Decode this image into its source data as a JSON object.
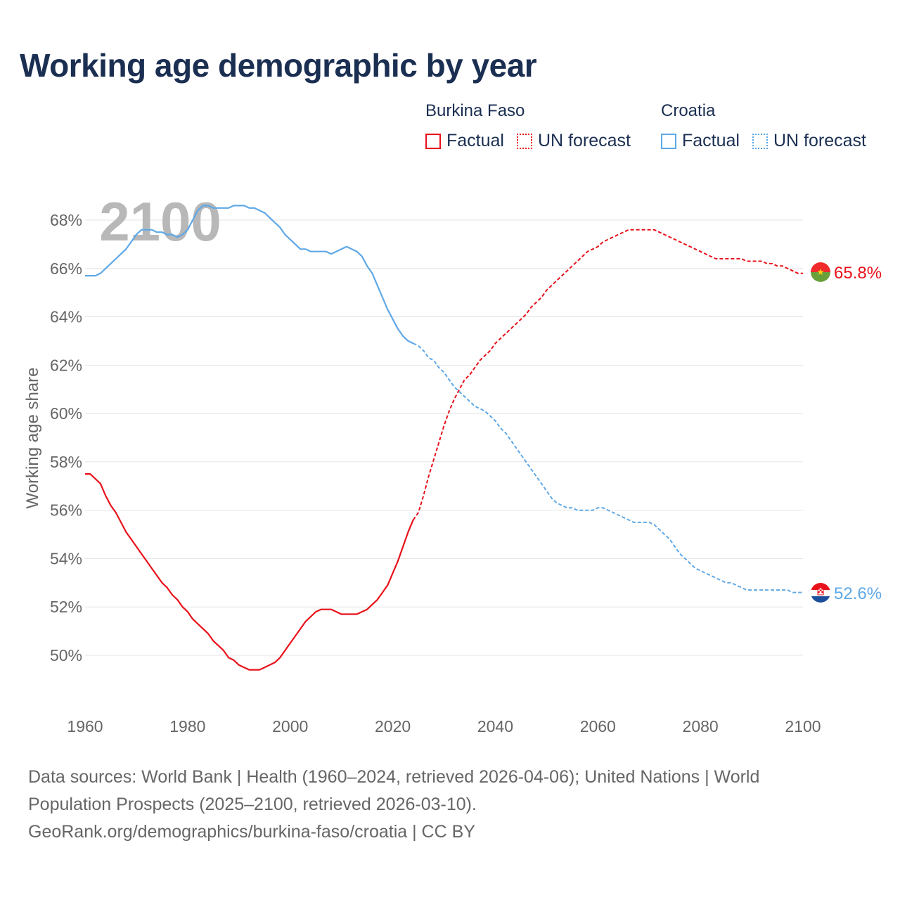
{
  "title": "Working age demographic by year",
  "legend": {
    "groups": [
      {
        "name": "Burkina Faso",
        "factual_label": "Factual",
        "forecast_label": "UN forecast",
        "color": "#e8111b"
      },
      {
        "name": "Croatia",
        "factual_label": "Factual",
        "forecast_label": "UN forecast",
        "color": "#5fa8e6"
      }
    ]
  },
  "chart_data": {
    "type": "line",
    "title": "Working age demographic by year",
    "xlabel": "",
    "ylabel": "Working age share",
    "xlim": [
      1960,
      2100
    ],
    "ylim": [
      48,
      69
    ],
    "x_ticks": [
      1960,
      1980,
      2000,
      2020,
      2040,
      2060,
      2080,
      2100
    ],
    "x_tick_labels": [
      "1960",
      "1980",
      "2000",
      "2020",
      "2040",
      "2060",
      "2080",
      "2100"
    ],
    "y_ticks": [
      50,
      52,
      54,
      56,
      58,
      60,
      62,
      64,
      66,
      68
    ],
    "y_tick_labels": [
      "50%",
      "52%",
      "54%",
      "56%",
      "58%",
      "60%",
      "62%",
      "64%",
      "66%",
      "68%"
    ],
    "grid": true,
    "watermark_year": "2100",
    "factual_range": [
      1960,
      2024
    ],
    "forecast_range": [
      2024,
      2100
    ],
    "series": [
      {
        "name": "Burkina Faso",
        "color": "#e8111b",
        "end_label": "65.8%",
        "points": [
          [
            1960,
            57.5
          ],
          [
            1961,
            57.5
          ],
          [
            1962,
            57.3
          ],
          [
            1963,
            57.1
          ],
          [
            1964,
            56.6
          ],
          [
            1965,
            56.2
          ],
          [
            1966,
            55.9
          ],
          [
            1967,
            55.5
          ],
          [
            1968,
            55.1
          ],
          [
            1969,
            54.8
          ],
          [
            1970,
            54.5
          ],
          [
            1971,
            54.2
          ],
          [
            1972,
            53.9
          ],
          [
            1973,
            53.6
          ],
          [
            1974,
            53.3
          ],
          [
            1975,
            53.0
          ],
          [
            1976,
            52.8
          ],
          [
            1977,
            52.5
          ],
          [
            1978,
            52.3
          ],
          [
            1979,
            52.0
          ],
          [
            1980,
            51.8
          ],
          [
            1981,
            51.5
          ],
          [
            1982,
            51.3
          ],
          [
            1983,
            51.1
          ],
          [
            1984,
            50.9
          ],
          [
            1985,
            50.6
          ],
          [
            1986,
            50.4
          ],
          [
            1987,
            50.2
          ],
          [
            1988,
            49.9
          ],
          [
            1989,
            49.8
          ],
          [
            1990,
            49.6
          ],
          [
            1991,
            49.5
          ],
          [
            1992,
            49.4
          ],
          [
            1993,
            49.4
          ],
          [
            1994,
            49.4
          ],
          [
            1995,
            49.5
          ],
          [
            1996,
            49.6
          ],
          [
            1997,
            49.7
          ],
          [
            1998,
            49.9
          ],
          [
            1999,
            50.2
          ],
          [
            2000,
            50.5
          ],
          [
            2001,
            50.8
          ],
          [
            2002,
            51.1
          ],
          [
            2003,
            51.4
          ],
          [
            2004,
            51.6
          ],
          [
            2005,
            51.8
          ],
          [
            2006,
            51.9
          ],
          [
            2007,
            51.9
          ],
          [
            2008,
            51.9
          ],
          [
            2009,
            51.8
          ],
          [
            2010,
            51.7
          ],
          [
            2011,
            51.7
          ],
          [
            2012,
            51.7
          ],
          [
            2013,
            51.7
          ],
          [
            2014,
            51.8
          ],
          [
            2015,
            51.9
          ],
          [
            2016,
            52.1
          ],
          [
            2017,
            52.3
          ],
          [
            2018,
            52.6
          ],
          [
            2019,
            52.9
          ],
          [
            2020,
            53.4
          ],
          [
            2021,
            53.9
          ],
          [
            2022,
            54.5
          ],
          [
            2023,
            55.1
          ],
          [
            2024,
            55.6
          ],
          [
            2025,
            55.9
          ],
          [
            2026,
            56.6
          ],
          [
            2027,
            57.4
          ],
          [
            2028,
            58.1
          ],
          [
            2029,
            58.8
          ],
          [
            2030,
            59.5
          ],
          [
            2031,
            60.1
          ],
          [
            2032,
            60.6
          ],
          [
            2033,
            61.0
          ],
          [
            2034,
            61.4
          ],
          [
            2035,
            61.6
          ],
          [
            2036,
            61.9
          ],
          [
            2037,
            62.2
          ],
          [
            2038,
            62.4
          ],
          [
            2039,
            62.6
          ],
          [
            2040,
            62.9
          ],
          [
            2041,
            63.1
          ],
          [
            2042,
            63.3
          ],
          [
            2043,
            63.5
          ],
          [
            2044,
            63.7
          ],
          [
            2045,
            63.9
          ],
          [
            2046,
            64.1
          ],
          [
            2047,
            64.4
          ],
          [
            2048,
            64.6
          ],
          [
            2049,
            64.8
          ],
          [
            2050,
            65.1
          ],
          [
            2051,
            65.3
          ],
          [
            2052,
            65.5
          ],
          [
            2053,
            65.7
          ],
          [
            2054,
            65.9
          ],
          [
            2055,
            66.1
          ],
          [
            2056,
            66.3
          ],
          [
            2057,
            66.5
          ],
          [
            2058,
            66.7
          ],
          [
            2059,
            66.8
          ],
          [
            2060,
            66.9
          ],
          [
            2061,
            67.1
          ],
          [
            2062,
            67.2
          ],
          [
            2063,
            67.3
          ],
          [
            2064,
            67.4
          ],
          [
            2065,
            67.5
          ],
          [
            2066,
            67.6
          ],
          [
            2067,
            67.6
          ],
          [
            2068,
            67.6
          ],
          [
            2069,
            67.6
          ],
          [
            2070,
            67.6
          ],
          [
            2071,
            67.6
          ],
          [
            2072,
            67.5
          ],
          [
            2073,
            67.4
          ],
          [
            2074,
            67.3
          ],
          [
            2075,
            67.2
          ],
          [
            2076,
            67.1
          ],
          [
            2077,
            67.0
          ],
          [
            2078,
            66.9
          ],
          [
            2079,
            66.8
          ],
          [
            2080,
            66.7
          ],
          [
            2081,
            66.6
          ],
          [
            2082,
            66.5
          ],
          [
            2083,
            66.4
          ],
          [
            2084,
            66.4
          ],
          [
            2085,
            66.4
          ],
          [
            2086,
            66.4
          ],
          [
            2087,
            66.4
          ],
          [
            2088,
            66.4
          ],
          [
            2089,
            66.3
          ],
          [
            2090,
            66.3
          ],
          [
            2091,
            66.3
          ],
          [
            2092,
            66.3
          ],
          [
            2093,
            66.2
          ],
          [
            2094,
            66.2
          ],
          [
            2095,
            66.1
          ],
          [
            2096,
            66.1
          ],
          [
            2097,
            66.0
          ],
          [
            2098,
            65.9
          ],
          [
            2099,
            65.8
          ],
          [
            2100,
            65.8
          ]
        ]
      },
      {
        "name": "Croatia",
        "color": "#5fa8e6",
        "end_label": "52.6%",
        "points": [
          [
            1960,
            65.7
          ],
          [
            1961,
            65.7
          ],
          [
            1962,
            65.7
          ],
          [
            1963,
            65.8
          ],
          [
            1964,
            66.0
          ],
          [
            1965,
            66.2
          ],
          [
            1966,
            66.4
          ],
          [
            1967,
            66.6
          ],
          [
            1968,
            66.8
          ],
          [
            1969,
            67.1
          ],
          [
            1970,
            67.4
          ],
          [
            1971,
            67.6
          ],
          [
            1972,
            67.6
          ],
          [
            1973,
            67.6
          ],
          [
            1974,
            67.5
          ],
          [
            1975,
            67.5
          ],
          [
            1976,
            67.4
          ],
          [
            1977,
            67.4
          ],
          [
            1978,
            67.3
          ],
          [
            1979,
            67.4
          ],
          [
            1980,
            67.6
          ],
          [
            1981,
            68.0
          ],
          [
            1982,
            68.4
          ],
          [
            1983,
            68.6
          ],
          [
            1984,
            68.6
          ],
          [
            1985,
            68.5
          ],
          [
            1986,
            68.5
          ],
          [
            1987,
            68.5
          ],
          [
            1988,
            68.5
          ],
          [
            1989,
            68.6
          ],
          [
            1990,
            68.6
          ],
          [
            1991,
            68.6
          ],
          [
            1992,
            68.5
          ],
          [
            1993,
            68.5
          ],
          [
            1994,
            68.4
          ],
          [
            1995,
            68.3
          ],
          [
            1996,
            68.1
          ],
          [
            1997,
            67.9
          ],
          [
            1998,
            67.7
          ],
          [
            1999,
            67.4
          ],
          [
            2000,
            67.2
          ],
          [
            2001,
            67.0
          ],
          [
            2002,
            66.8
          ],
          [
            2003,
            66.8
          ],
          [
            2004,
            66.7
          ],
          [
            2005,
            66.7
          ],
          [
            2006,
            66.7
          ],
          [
            2007,
            66.7
          ],
          [
            2008,
            66.6
          ],
          [
            2009,
            66.7
          ],
          [
            2010,
            66.8
          ],
          [
            2011,
            66.9
          ],
          [
            2012,
            66.8
          ],
          [
            2013,
            66.7
          ],
          [
            2014,
            66.5
          ],
          [
            2015,
            66.1
          ],
          [
            2016,
            65.8
          ],
          [
            2017,
            65.3
          ],
          [
            2018,
            64.8
          ],
          [
            2019,
            64.3
          ],
          [
            2020,
            63.9
          ],
          [
            2021,
            63.5
          ],
          [
            2022,
            63.2
          ],
          [
            2023,
            63.0
          ],
          [
            2024,
            62.9
          ],
          [
            2025,
            62.8
          ],
          [
            2026,
            62.6
          ],
          [
            2027,
            62.3
          ],
          [
            2028,
            62.2
          ],
          [
            2029,
            61.9
          ],
          [
            2030,
            61.7
          ],
          [
            2031,
            61.4
          ],
          [
            2032,
            61.1
          ],
          [
            2033,
            60.9
          ],
          [
            2034,
            60.7
          ],
          [
            2035,
            60.5
          ],
          [
            2036,
            60.3
          ],
          [
            2037,
            60.2
          ],
          [
            2038,
            60.1
          ],
          [
            2039,
            59.9
          ],
          [
            2040,
            59.7
          ],
          [
            2041,
            59.4
          ],
          [
            2042,
            59.2
          ],
          [
            2043,
            58.9
          ],
          [
            2044,
            58.6
          ],
          [
            2045,
            58.3
          ],
          [
            2046,
            58.0
          ],
          [
            2047,
            57.7
          ],
          [
            2048,
            57.4
          ],
          [
            2049,
            57.1
          ],
          [
            2050,
            56.8
          ],
          [
            2051,
            56.5
          ],
          [
            2052,
            56.3
          ],
          [
            2053,
            56.2
          ],
          [
            2054,
            56.1
          ],
          [
            2055,
            56.1
          ],
          [
            2056,
            56.0
          ],
          [
            2057,
            56.0
          ],
          [
            2058,
            56.0
          ],
          [
            2059,
            56.0
          ],
          [
            2060,
            56.1
          ],
          [
            2061,
            56.1
          ],
          [
            2062,
            56.0
          ],
          [
            2063,
            55.9
          ],
          [
            2064,
            55.8
          ],
          [
            2065,
            55.7
          ],
          [
            2066,
            55.6
          ],
          [
            2067,
            55.5
          ],
          [
            2068,
            55.5
          ],
          [
            2069,
            55.5
          ],
          [
            2070,
            55.5
          ],
          [
            2071,
            55.4
          ],
          [
            2072,
            55.2
          ],
          [
            2073,
            55.0
          ],
          [
            2074,
            54.8
          ],
          [
            2075,
            54.5
          ],
          [
            2076,
            54.2
          ],
          [
            2077,
            54.0
          ],
          [
            2078,
            53.8
          ],
          [
            2079,
            53.6
          ],
          [
            2080,
            53.5
          ],
          [
            2081,
            53.4
          ],
          [
            2082,
            53.3
          ],
          [
            2083,
            53.2
          ],
          [
            2084,
            53.1
          ],
          [
            2085,
            53.0
          ],
          [
            2086,
            53.0
          ],
          [
            2087,
            52.9
          ],
          [
            2088,
            52.8
          ],
          [
            2089,
            52.7
          ],
          [
            2090,
            52.7
          ],
          [
            2091,
            52.7
          ],
          [
            2092,
            52.7
          ],
          [
            2093,
            52.7
          ],
          [
            2094,
            52.7
          ],
          [
            2095,
            52.7
          ],
          [
            2096,
            52.7
          ],
          [
            2097,
            52.7
          ],
          [
            2098,
            52.6
          ],
          [
            2099,
            52.6
          ],
          [
            2100,
            52.6
          ]
        ]
      }
    ]
  },
  "source": {
    "line1": "Data sources: World Bank | Health (1960–2024, retrieved 2026-04-06); United Nations | World",
    "line2": "Population Prospects (2025–2100, retrieved 2026-03-10).",
    "line3": "GeoRank.org/demographics/burkina-faso/croatia | CC BY"
  }
}
